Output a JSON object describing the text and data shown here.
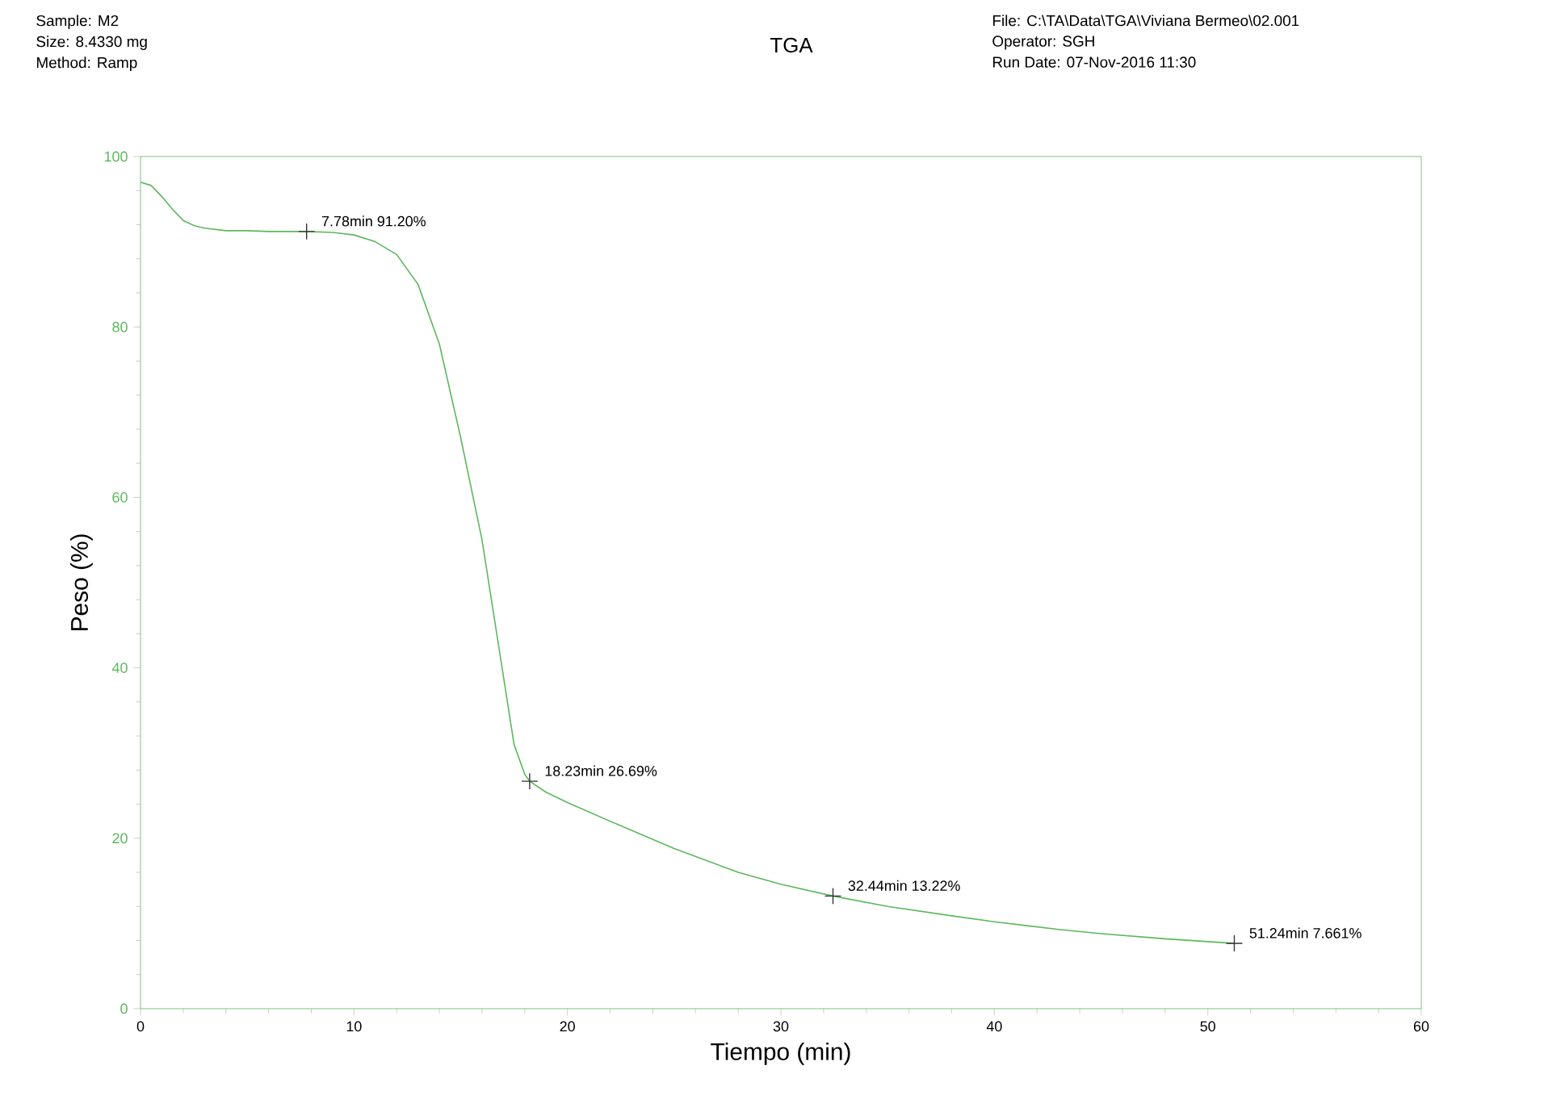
{
  "chart_data": {
    "type": "line",
    "title": "TGA",
    "xlabel": "Tiempo (min)",
    "ylabel": "Peso (%)",
    "annotations": [
      "Sample: M2",
      "Size:  8.4330 mg",
      "Method: Ramp",
      "File: C:\\TA\\Data\\TGA\\Viviana Bermeo\\02.001",
      "Operator: SGH",
      "Run Date: 07-Nov-2016 11:30",
      {
        "text": "7.78min 91.20%",
        "x": 7.78,
        "y": 91.2
      },
      {
        "text": "18.23min 26.69%",
        "x": 18.23,
        "y": 26.69
      },
      {
        "text": "32.44min 13.22%",
        "x": 32.44,
        "y": 13.22
      },
      {
        "text": "51.24min 7.661%",
        "x": 51.24,
        "y": 7.661
      }
    ],
    "xlim": [
      0,
      60
    ],
    "ylim": [
      0,
      100
    ],
    "xticks": [
      0,
      10,
      20,
      30,
      40,
      50,
      60
    ],
    "yticks": [
      0,
      20,
      40,
      60,
      80,
      100
    ],
    "series": [
      {
        "color": "#5cb85c",
        "x": [
          0,
          0.5,
          1,
          1.5,
          2,
          2.5,
          3,
          4,
          5,
          6,
          7.78,
          9,
          10,
          11,
          12,
          13,
          14,
          15,
          16,
          16.5,
          17,
          17.5,
          18,
          18.23,
          19,
          20,
          22,
          25,
          28,
          30,
          32.44,
          35,
          38,
          40,
          43,
          45,
          48,
          51.24
        ],
        "values": [
          97,
          96.6,
          95.3,
          93.8,
          92.5,
          91.9,
          91.6,
          91.3,
          91.3,
          91.2,
          91.2,
          91.1,
          90.8,
          90,
          88.5,
          85,
          78,
          67,
          55,
          47,
          39,
          31,
          27.5,
          26.69,
          25.4,
          24.2,
          22,
          18.8,
          16,
          14.6,
          13.22,
          12,
          10.9,
          10.2,
          9.3,
          8.8,
          8.2,
          7.661
        ]
      },
      {
        "type": "scatter",
        "color": "#333333",
        "marker": "cross",
        "x": [
          7.78,
          18.23,
          32.44,
          51.24
        ],
        "values": [
          91.2,
          26.69,
          13.22,
          7.661
        ]
      }
    ]
  }
}
